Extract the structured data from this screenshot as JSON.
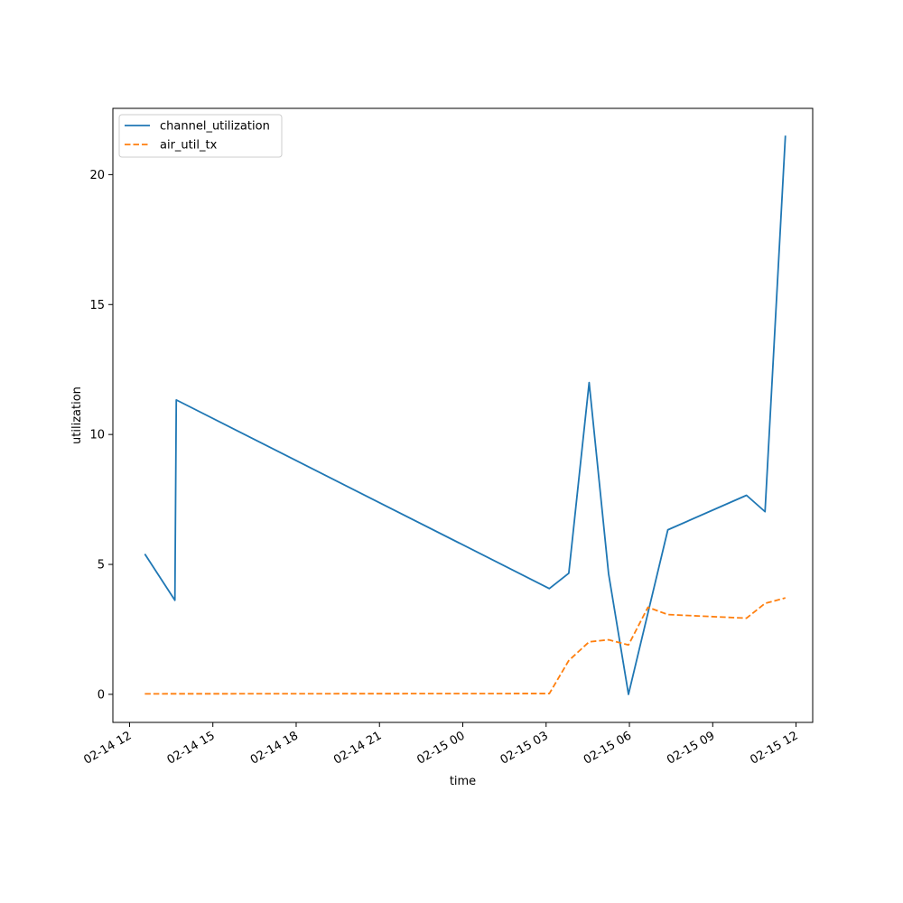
{
  "chart_data": {
    "type": "line",
    "title": "",
    "xlabel": "time",
    "ylabel": "utilization",
    "x_tick_labels": [
      "02-14 12",
      "02-14 15",
      "02-14 18",
      "02-14 21",
      "02-15 00",
      "02-15 03",
      "02-15 06",
      "02-15 09",
      "02-15 12"
    ],
    "x_ticks": [
      "2025-02-14T12:00",
      "2025-02-14T15:00",
      "2025-02-14T18:00",
      "2025-02-14T21:00",
      "2025-02-15T00:00",
      "2025-02-15T03:00",
      "2025-02-15T06:00",
      "2025-02-15T09:00",
      "2025-02-15T12:00"
    ],
    "xlim": [
      "2025-02-14T11:24",
      "2025-02-15T12:36"
    ],
    "y_ticks": [
      0,
      5,
      10,
      15,
      20
    ],
    "y_tick_labels": [
      "0",
      "5",
      "10",
      "15",
      "20"
    ],
    "ylim": [
      -1.08,
      22.55
    ],
    "grid": false,
    "legend_position": "top-left",
    "series": [
      {
        "name": "channel_utilization",
        "color": "#1f77b4",
        "style": "solid",
        "points": [
          [
            "2025-02-14T12:33",
            5.4
          ],
          [
            "2025-02-14T13:38",
            3.62
          ],
          [
            "2025-02-14T13:41",
            11.33
          ],
          [
            "2025-02-15T03:07",
            4.07
          ],
          [
            "2025-02-15T03:49",
            4.66
          ],
          [
            "2025-02-15T04:33",
            12.0
          ],
          [
            "2025-02-15T05:15",
            4.64
          ],
          [
            "2025-02-15T05:58",
            0.0
          ],
          [
            "2025-02-15T07:23",
            6.33
          ],
          [
            "2025-02-15T10:13",
            7.66
          ],
          [
            "2025-02-15T10:53",
            7.03
          ],
          [
            "2025-02-15T11:37",
            21.5
          ]
        ]
      },
      {
        "name": "air_util_tx",
        "color": "#ff7f0e",
        "style": "dashed",
        "points": [
          [
            "2025-02-14T12:33",
            0.02
          ],
          [
            "2025-02-15T03:07",
            0.03
          ],
          [
            "2025-02-15T03:49",
            1.3
          ],
          [
            "2025-02-15T04:33",
            2.02
          ],
          [
            "2025-02-15T05:15",
            2.1
          ],
          [
            "2025-02-15T05:58",
            1.9
          ],
          [
            "2025-02-15T06:40",
            3.35
          ],
          [
            "2025-02-15T07:23",
            3.07
          ],
          [
            "2025-02-15T10:13",
            2.93
          ],
          [
            "2025-02-15T10:53",
            3.5
          ],
          [
            "2025-02-15T11:37",
            3.71
          ]
        ]
      }
    ]
  }
}
